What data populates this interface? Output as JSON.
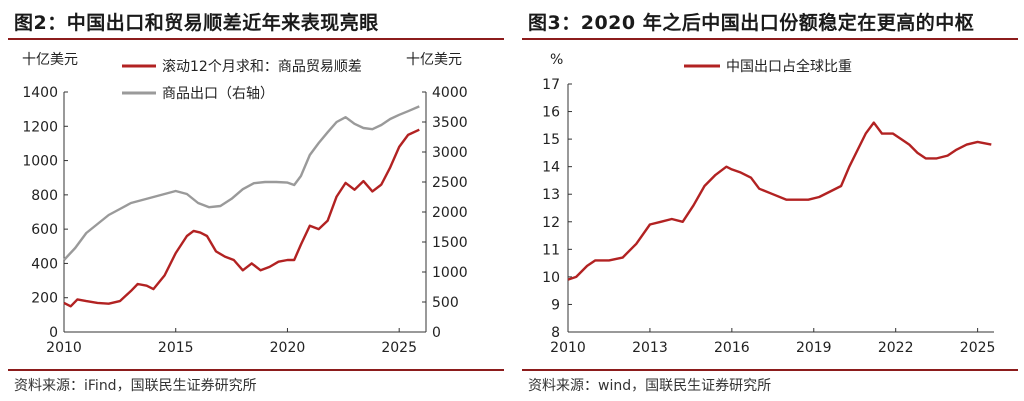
{
  "panels": {
    "left": {
      "title": "图2：中国出口和贸易顺差近年来表现亮眼",
      "source": "资料来源：iFind，国联民生证券研究所"
    },
    "right": {
      "title": "图3：2020 年之后中国出口份额稳定在更高的中枢",
      "source": "资料来源：wind，国联民生证券研究所"
    }
  },
  "colors": {
    "red": "#b22222",
    "gray": "#9a9a9a",
    "rule": "#8c1c1c",
    "axis": "#333333"
  },
  "chart_data": [
    {
      "type": "line",
      "title": "",
      "xlabel": "",
      "ylabel_left": "十亿美元",
      "ylabel_right": "十亿美元",
      "xlim": [
        2010,
        2026.2
      ],
      "ylim_left": [
        0,
        1400
      ],
      "ylim_right": [
        0,
        4000
      ],
      "x_ticks": [
        2010,
        2015,
        2020,
        2025
      ],
      "y_ticks_left": [
        0,
        200,
        400,
        600,
        800,
        1000,
        1200,
        1400
      ],
      "y_ticks_right": [
        0,
        500,
        1000,
        1500,
        2000,
        2500,
        3000,
        3500,
        4000
      ],
      "grid": false,
      "legend": "top-center",
      "series": [
        {
          "name": "滚动12个月求和：商品贸易顺差",
          "axis": "left",
          "color": "#b22222",
          "x": [
            2010.0,
            2010.3,
            2010.6,
            2011.0,
            2011.5,
            2012.0,
            2012.5,
            2013.0,
            2013.3,
            2013.7,
            2014.0,
            2014.5,
            2015.0,
            2015.5,
            2015.8,
            2016.1,
            2016.4,
            2016.8,
            2017.2,
            2017.6,
            2018.0,
            2018.4,
            2018.8,
            2019.2,
            2019.6,
            2020.0,
            2020.3,
            2020.6,
            2021.0,
            2021.4,
            2021.8,
            2022.2,
            2022.6,
            2023.0,
            2023.4,
            2023.8,
            2024.2,
            2024.6,
            2025.0,
            2025.4,
            2025.9
          ],
          "y": [
            170,
            150,
            190,
            180,
            170,
            165,
            180,
            240,
            280,
            270,
            250,
            330,
            460,
            560,
            590,
            580,
            560,
            470,
            440,
            420,
            360,
            400,
            360,
            380,
            410,
            420,
            420,
            510,
            620,
            600,
            650,
            790,
            870,
            830,
            880,
            820,
            860,
            960,
            1080,
            1150,
            1180
          ]
        },
        {
          "name": "商品出口（右轴）",
          "axis": "right",
          "color": "#9a9a9a",
          "x": [
            2010.0,
            2010.5,
            2011.0,
            2011.5,
            2012.0,
            2012.5,
            2013.0,
            2013.5,
            2014.0,
            2014.5,
            2015.0,
            2015.5,
            2016.0,
            2016.5,
            2017.0,
            2017.5,
            2018.0,
            2018.5,
            2019.0,
            2019.5,
            2020.0,
            2020.3,
            2020.6,
            2021.0,
            2021.4,
            2021.8,
            2022.2,
            2022.6,
            2023.0,
            2023.4,
            2023.8,
            2024.2,
            2024.6,
            2025.0,
            2025.4,
            2025.9
          ],
          "y": [
            1200,
            1400,
            1650,
            1800,
            1950,
            2050,
            2150,
            2200,
            2250,
            2300,
            2350,
            2300,
            2150,
            2080,
            2100,
            2220,
            2380,
            2480,
            2500,
            2500,
            2490,
            2450,
            2600,
            2950,
            3150,
            3330,
            3500,
            3580,
            3470,
            3400,
            3380,
            3450,
            3550,
            3620,
            3680,
            3760
          ]
        }
      ]
    },
    {
      "type": "line",
      "title": "",
      "xlabel": "",
      "ylabel": "%",
      "xlim": [
        2010,
        2025.6
      ],
      "ylim": [
        8,
        17
      ],
      "x_ticks": [
        2010,
        2013,
        2016,
        2019,
        2022,
        2025
      ],
      "y_ticks": [
        8,
        9,
        10,
        11,
        12,
        13,
        14,
        15,
        16,
        17
      ],
      "grid": false,
      "legend": "top-center",
      "series": [
        {
          "name": "中国出口占全球比重",
          "color": "#b22222",
          "x": [
            2010.0,
            2010.3,
            2010.7,
            2011.0,
            2011.5,
            2012.0,
            2012.5,
            2013.0,
            2013.4,
            2013.8,
            2014.2,
            2014.6,
            2015.0,
            2015.4,
            2015.8,
            2016.0,
            2016.3,
            2016.7,
            2017.0,
            2017.5,
            2018.0,
            2018.4,
            2018.8,
            2019.2,
            2019.6,
            2020.0,
            2020.3,
            2020.6,
            2020.9,
            2021.2,
            2021.5,
            2021.9,
            2022.2,
            2022.5,
            2022.8,
            2023.1,
            2023.5,
            2023.9,
            2024.2,
            2024.6,
            2025.0,
            2025.5
          ],
          "y": [
            9.9,
            10.0,
            10.4,
            10.6,
            10.6,
            10.7,
            11.2,
            11.9,
            12.0,
            12.1,
            12.0,
            12.6,
            13.3,
            13.7,
            14.0,
            13.9,
            13.8,
            13.6,
            13.2,
            13.0,
            12.8,
            12.8,
            12.8,
            12.9,
            13.1,
            13.3,
            14.0,
            14.6,
            15.2,
            15.6,
            15.2,
            15.2,
            15.0,
            14.8,
            14.5,
            14.3,
            14.3,
            14.4,
            14.6,
            14.8,
            14.9,
            14.8
          ]
        }
      ]
    }
  ]
}
